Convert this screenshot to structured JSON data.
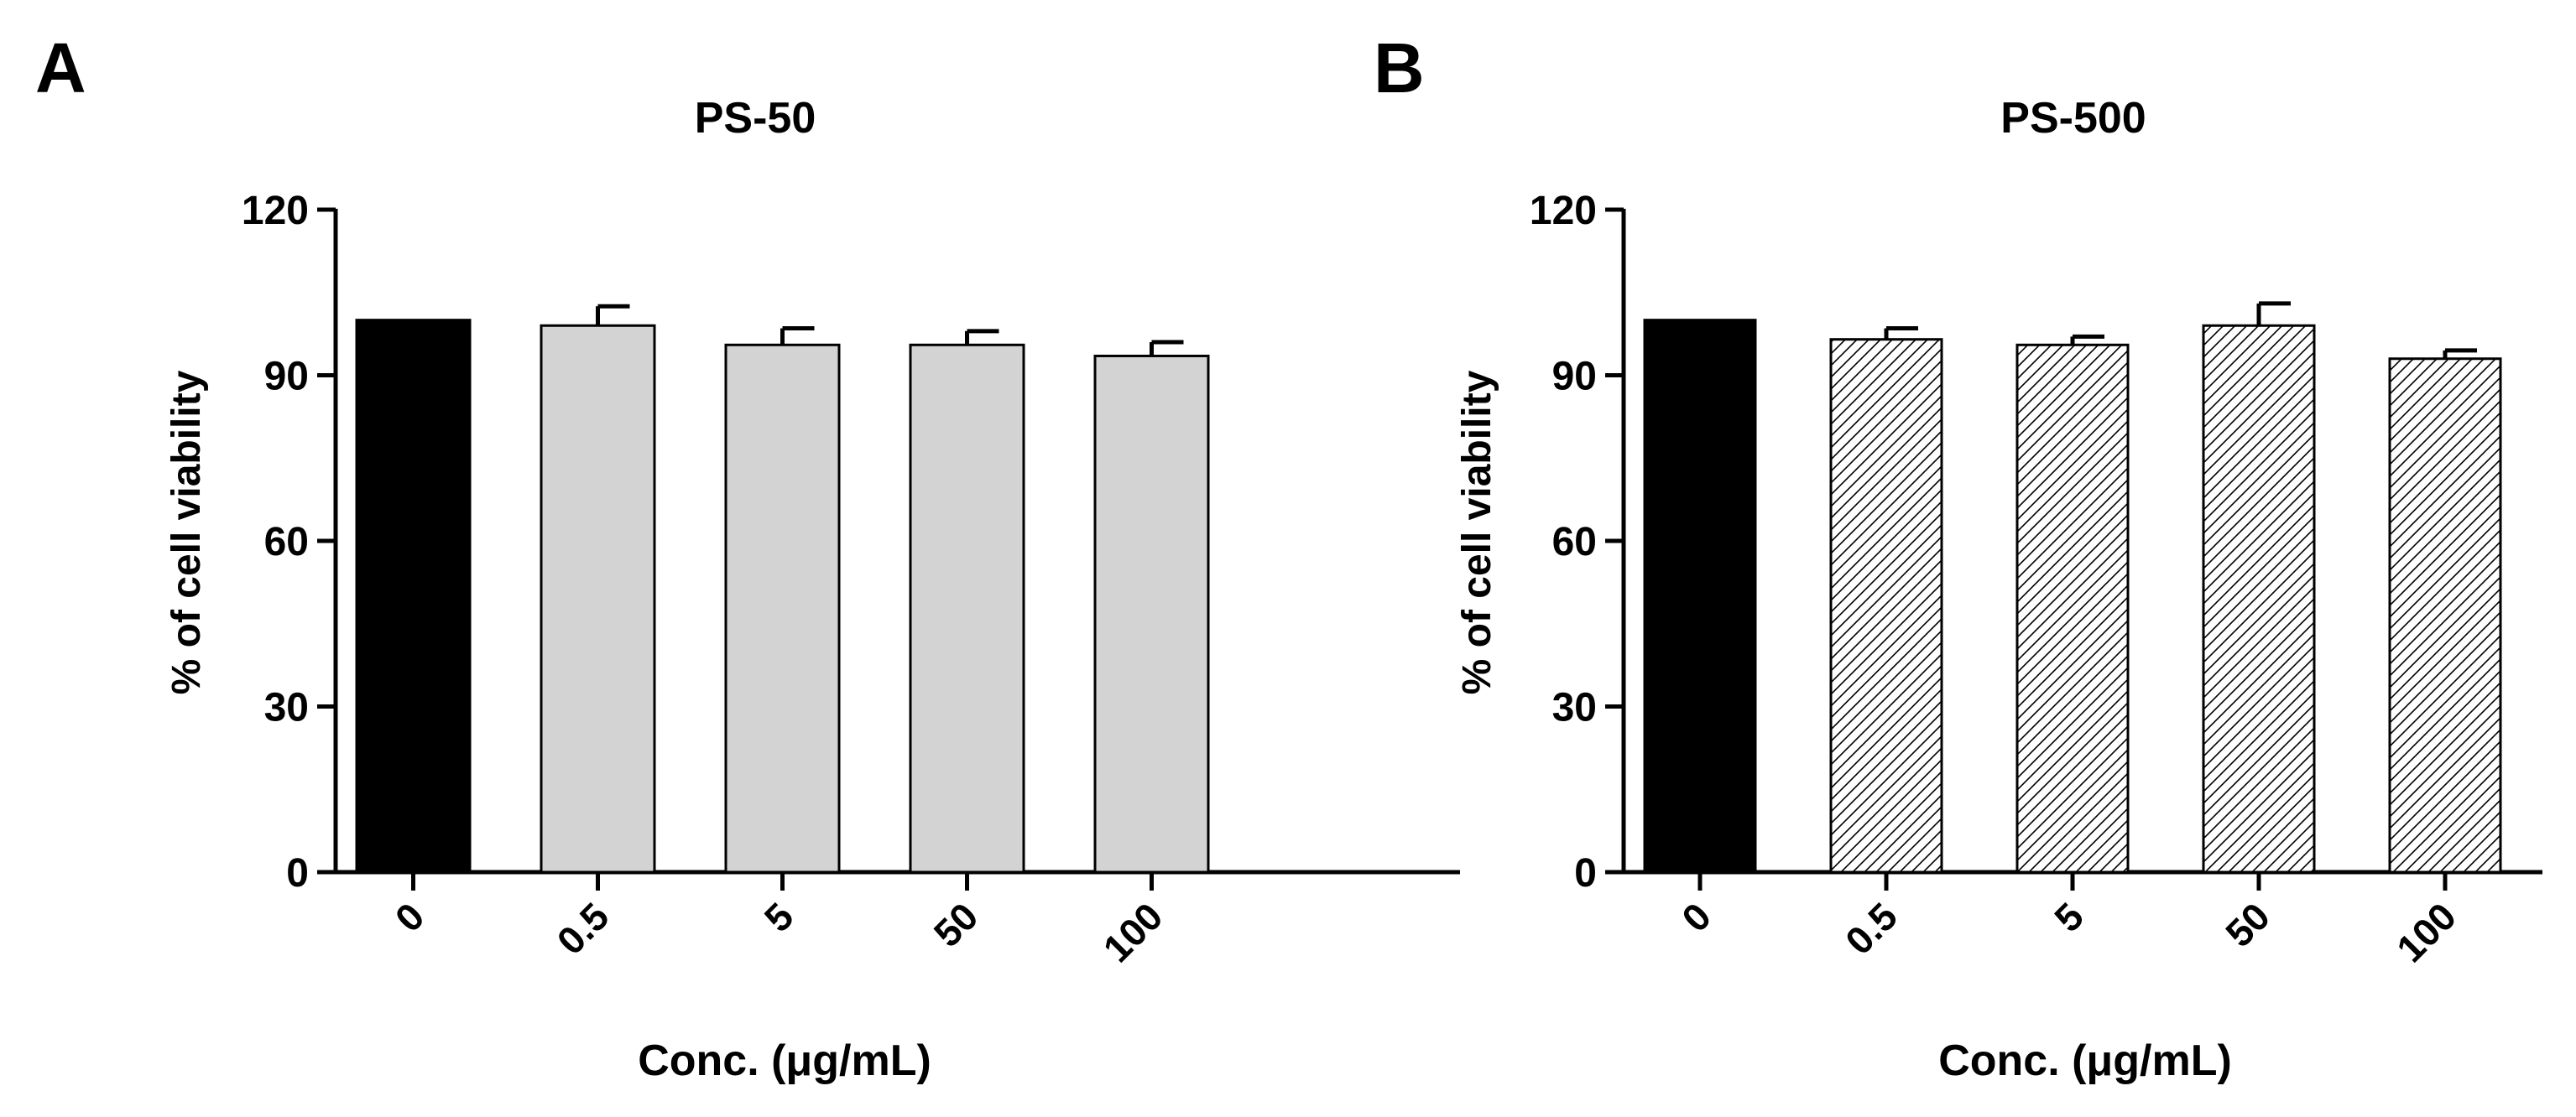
{
  "panels": [
    {
      "letter": "A",
      "fill": "gray",
      "chart_data": {
        "type": "bar",
        "title": "PS-50",
        "xlabel": "Conc. (μg/mL)",
        "ylabel": "% of cell viability",
        "categories": [
          "0",
          "0.5",
          "5",
          "50",
          "100"
        ],
        "values": [
          100,
          99,
          95.5,
          95.5,
          93.5
        ],
        "errors": [
          0,
          3.5,
          3,
          2.5,
          2.5
        ],
        "control_index": 0,
        "ylim": [
          0,
          120
        ],
        "yticks": [
          0,
          30,
          60,
          90,
          120
        ]
      }
    },
    {
      "letter": "B",
      "fill": "hatch",
      "chart_data": {
        "type": "bar",
        "title": "PS-500",
        "xlabel": "Conc. (μg/mL)",
        "ylabel": "% of cell viability",
        "categories": [
          "0",
          "0.5",
          "5",
          "50",
          "100"
        ],
        "values": [
          100,
          96.5,
          95.5,
          99,
          93
        ],
        "errors": [
          0,
          2,
          1.5,
          4,
          1.5
        ],
        "control_index": 0,
        "ylim": [
          0,
          120
        ],
        "yticks": [
          0,
          30,
          60,
          90,
          120
        ]
      }
    }
  ],
  "colors": {
    "control": "#000000",
    "gray_fill": "#d3d3d3",
    "hatch_line": "#000000",
    "hatch_bg": "#ffffff"
  }
}
